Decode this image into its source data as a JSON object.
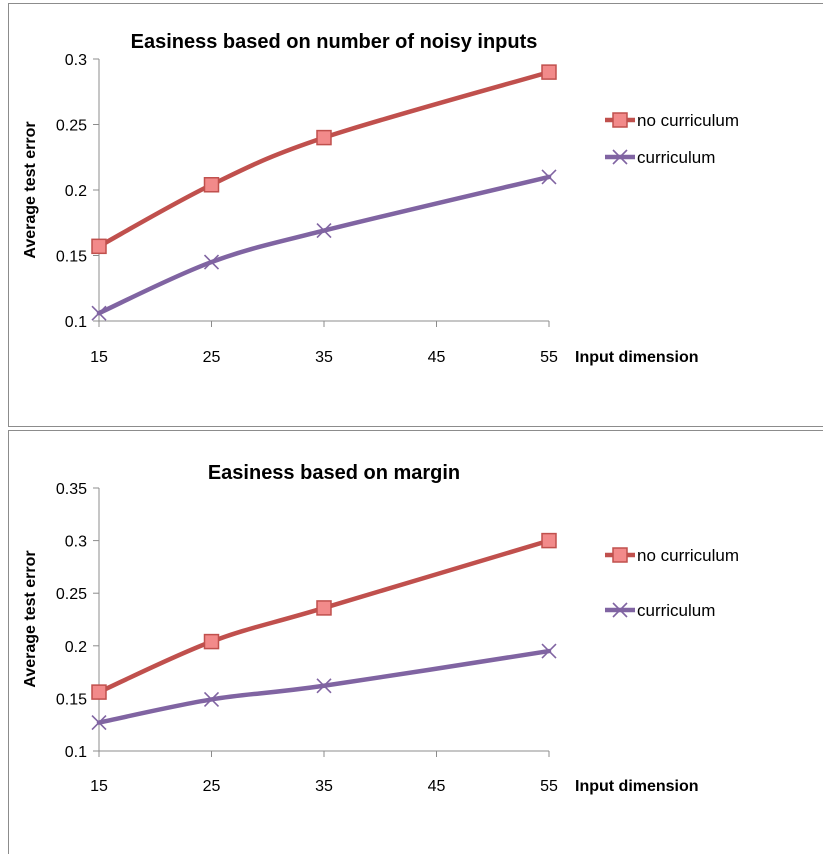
{
  "chart_data": [
    {
      "type": "line",
      "title": "Easiness based on number of noisy inputs",
      "xlabel": "Input dimension",
      "ylabel": "Average test error",
      "x_ticks": [
        15,
        25,
        35,
        45,
        55
      ],
      "y_ticks": [
        0.1,
        0.15,
        0.2,
        0.25,
        0.3
      ],
      "y_tick_labels": [
        "0.1",
        "0.15",
        "0.2",
        "0.25",
        "0.3"
      ],
      "xlim": [
        15,
        55
      ],
      "ylim": [
        0.1,
        0.3
      ],
      "grid": false,
      "legend": "right",
      "series": [
        {
          "name": "no curriculum",
          "x": [
            15,
            25,
            35,
            55
          ],
          "values": [
            0.157,
            0.204,
            0.24,
            0.29
          ],
          "color": "#c0504d",
          "marker": "square"
        },
        {
          "name": "curriculum",
          "x": [
            15,
            25,
            35,
            55
          ],
          "values": [
            0.106,
            0.145,
            0.169,
            0.21
          ],
          "color": "#8064a2",
          "marker": "x"
        }
      ]
    },
    {
      "type": "line",
      "title": "Easiness based on margin",
      "xlabel": "Input dimension",
      "ylabel": "Average test error",
      "x_ticks": [
        15,
        25,
        35,
        45,
        55
      ],
      "y_ticks": [
        0.1,
        0.15,
        0.2,
        0.25,
        0.3,
        0.35
      ],
      "y_tick_labels": [
        "0.1",
        "0.15",
        "0.2",
        "0.25",
        "0.3",
        "0.35"
      ],
      "xlim": [
        15,
        55
      ],
      "ylim": [
        0.1,
        0.35
      ],
      "grid": false,
      "legend": "right",
      "series": [
        {
          "name": "no curriculum",
          "x": [
            15,
            25,
            35,
            55
          ],
          "values": [
            0.156,
            0.204,
            0.236,
            0.3
          ],
          "color": "#c0504d",
          "marker": "square"
        },
        {
          "name": "curriculum",
          "x": [
            15,
            25,
            35,
            55
          ],
          "values": [
            0.127,
            0.149,
            0.162,
            0.195
          ],
          "color": "#8064a2",
          "marker": "x"
        }
      ]
    }
  ]
}
